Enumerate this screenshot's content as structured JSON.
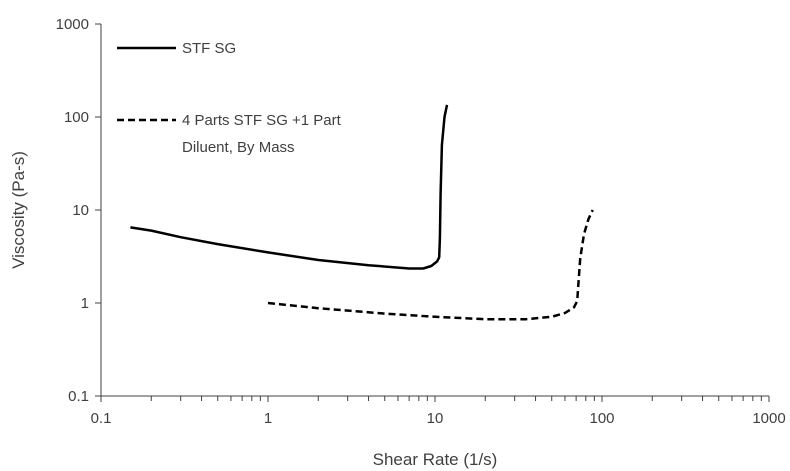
{
  "chart_data": {
    "type": "line",
    "title": "",
    "xlabel": "Shear Rate (1/s)",
    "ylabel": "Viscosity (Pa-s)",
    "xscale": "log",
    "yscale": "log",
    "xlim": [
      0.1,
      1000
    ],
    "ylim": [
      0.1,
      1000
    ],
    "x_tick_labels": [
      "0.1",
      "1",
      "10",
      "100",
      "1000"
    ],
    "y_tick_labels": [
      "0.1",
      "1",
      "10",
      "100",
      "1000"
    ],
    "grid": false,
    "legend_position": "top-left",
    "series": [
      {
        "name": "STF SG",
        "line_style": "solid",
        "color": "#000000",
        "x": [
          0.15,
          0.2,
          0.3,
          0.5,
          1.0,
          2.0,
          4.0,
          7.0,
          8.5,
          9.5,
          10.3,
          10.6,
          10.7,
          10.8,
          11.0,
          11.4,
          11.8
        ],
        "y": [
          6.5,
          6.0,
          5.1,
          4.3,
          3.5,
          2.9,
          2.55,
          2.35,
          2.35,
          2.5,
          2.8,
          3.1,
          5.0,
          15,
          50,
          100,
          135
        ]
      },
      {
        "name": "4 Parts STF SG +1 Part Diluent, By Mass",
        "legend_lines": [
          "4 Parts STF SG +1 Part",
          "Diluent, By Mass"
        ],
        "line_style": "dashed",
        "color": "#000000",
        "x": [
          1.0,
          2.0,
          5.0,
          10,
          20,
          35,
          50,
          60,
          68,
          71,
          72,
          74,
          78,
          83,
          88
        ],
        "y": [
          1.0,
          0.88,
          0.77,
          0.71,
          0.67,
          0.67,
          0.71,
          0.78,
          0.9,
          1.05,
          1.5,
          3.0,
          5.5,
          8.0,
          10
        ]
      }
    ]
  }
}
